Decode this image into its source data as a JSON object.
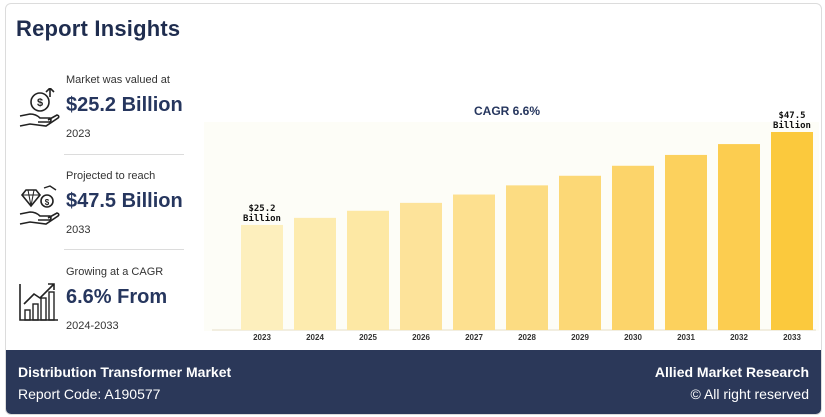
{
  "header": {
    "title": "Report Insights"
  },
  "stats": [
    {
      "label": "Market was valued at",
      "value": "$25.2 Billion",
      "sub": "2023",
      "icon": "money-hand-icon"
    },
    {
      "label": "Projected to reach",
      "value": "$47.5 Billion",
      "sub": "2033",
      "icon": "diamond-hand-icon"
    },
    {
      "label": "Growing at a CAGR",
      "value": "6.6% From",
      "sub": "2024-2033",
      "icon": "growth-chart-icon"
    }
  ],
  "footer": {
    "market_name": "Distribution Transformer Market",
    "report_code": "Report Code: A190577",
    "brand": "Allied Market Research",
    "rights": "© All right reserved"
  },
  "chart_data": {
    "type": "bar",
    "categories": [
      "2023",
      "2024",
      "2025",
      "2026",
      "2027",
      "2028",
      "2029",
      "2030",
      "2031",
      "2032",
      "2033"
    ],
    "values": [
      25.2,
      26.9,
      28.6,
      30.5,
      32.5,
      34.7,
      37.0,
      39.4,
      42.0,
      44.6,
      47.5
    ],
    "annotation": "CAGR 6.6%",
    "first_label": [
      "$25.2",
      "Billion"
    ],
    "last_label": [
      "$47.5",
      "Billion"
    ],
    "ylim": [
      0,
      50
    ],
    "grid": false,
    "colors": [
      "#fdefbd",
      "#fdebae",
      "#fde8a4",
      "#fde39a",
      "#fde08f",
      "#fcdc82",
      "#fcd876",
      "#fcd46a",
      "#fcd15d",
      "#fccd50",
      "#fbc93d"
    ]
  }
}
